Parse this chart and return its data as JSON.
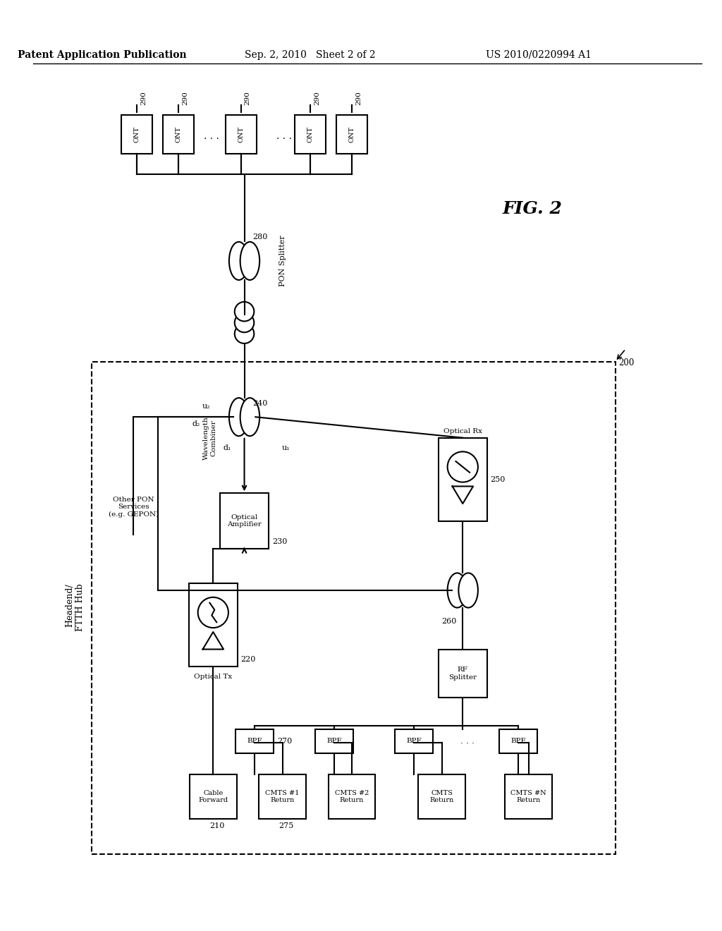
{
  "title_left": "Patent Application Publication",
  "title_mid": "Sep. 2, 2010   Sheet 2 of 2",
  "title_right": "US 2010/0220994 A1",
  "fig_label": "FIG. 2",
  "bg_color": "#ffffff",
  "line_color": "#000000",
  "box_color": "#ffffff",
  "dashed_box_label": "Headend/\nFTTH Hub",
  "components": {
    "ont_boxes": [
      "ONT",
      "ONT",
      "ONT",
      "ONT",
      "ONT"
    ],
    "pon_splitter_label": "PON Splitter",
    "optical_amplifier_label": "Optical\nAmplifier",
    "optical_tx_label": "Optical Tx",
    "optical_rx_label": "Optical Rx",
    "wavelength_combiner_label": "Wavelength\nCombiner",
    "rf_splitter_label": "RF\nSplitter",
    "bpf_labels": [
      "BPF",
      "BPF",
      "BPF",
      "BPF"
    ],
    "cmts_labels": [
      "Cable\nForward",
      "CMTS #1\nReturn",
      "CMTS #2\nReturn",
      "CMTS\nReturn",
      "CMTS #N\nReturn"
    ]
  },
  "labels": {
    "290": "290",
    "280": "280",
    "240": "240",
    "230": "230",
    "220": "220",
    "250": "250",
    "260": "260",
    "270": "270",
    "275": "275",
    "210": "210",
    "200": "200",
    "d1": "d₁",
    "d2": "d₂",
    "u1": "u₁",
    "u2": "u₂"
  }
}
